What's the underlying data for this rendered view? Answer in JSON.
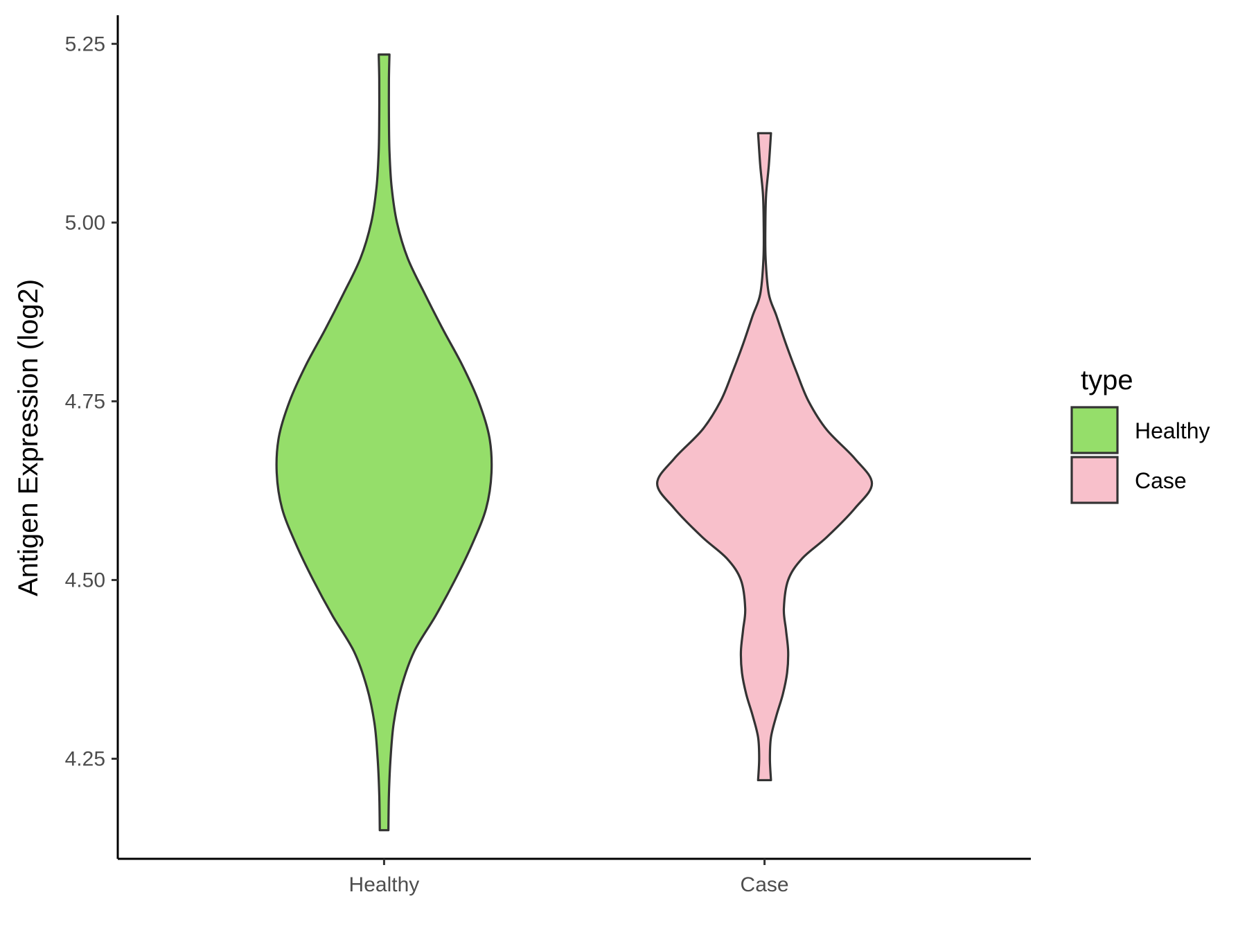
{
  "chart_data": {
    "type": "violin",
    "ylabel": "Antigen Expression (log2)",
    "xlabel": "",
    "ylim": [
      4.11,
      5.29
    ],
    "yticks": [
      4.25,
      4.5,
      4.75,
      5.0,
      5.25
    ],
    "ytick_labels": [
      "4.25",
      "4.50",
      "4.75",
      "5.00",
      "5.25"
    ],
    "categories": [
      "Healthy",
      "Case"
    ],
    "legend": {
      "title": "type",
      "position": "right",
      "entries": [
        {
          "label": "Healthy",
          "color": "#95de6a"
        },
        {
          "label": "Case",
          "color": "#f8c0cb"
        }
      ]
    },
    "series": [
      {
        "name": "Healthy",
        "color": "#95de6a",
        "min": 4.15,
        "max": 5.235,
        "profile": [
          [
            4.15,
            0.04
          ],
          [
            4.2,
            0.045
          ],
          [
            4.25,
            0.06
          ],
          [
            4.3,
            0.09
          ],
          [
            4.35,
            0.16
          ],
          [
            4.4,
            0.28
          ],
          [
            4.45,
            0.48
          ],
          [
            4.5,
            0.66
          ],
          [
            4.55,
            0.82
          ],
          [
            4.6,
            0.95
          ],
          [
            4.65,
            1.0
          ],
          [
            4.7,
            0.98
          ],
          [
            4.75,
            0.88
          ],
          [
            4.8,
            0.73
          ],
          [
            4.85,
            0.55
          ],
          [
            4.9,
            0.38
          ],
          [
            4.95,
            0.22
          ],
          [
            5.0,
            0.12
          ],
          [
            5.05,
            0.07
          ],
          [
            5.1,
            0.05
          ],
          [
            5.15,
            0.045
          ],
          [
            5.2,
            0.045
          ],
          [
            5.235,
            0.05
          ]
        ]
      },
      {
        "name": "Case",
        "color": "#f8c0cb",
        "min": 4.22,
        "max": 5.125,
        "profile": [
          [
            4.22,
            0.06
          ],
          [
            4.25,
            0.05
          ],
          [
            4.28,
            0.06
          ],
          [
            4.31,
            0.11
          ],
          [
            4.34,
            0.17
          ],
          [
            4.37,
            0.21
          ],
          [
            4.4,
            0.22
          ],
          [
            4.43,
            0.2
          ],
          [
            4.46,
            0.18
          ],
          [
            4.5,
            0.22
          ],
          [
            4.53,
            0.35
          ],
          [
            4.56,
            0.58
          ],
          [
            4.6,
            0.84
          ],
          [
            4.635,
            1.0
          ],
          [
            4.67,
            0.84
          ],
          [
            4.71,
            0.58
          ],
          [
            4.75,
            0.41
          ],
          [
            4.79,
            0.3
          ],
          [
            4.83,
            0.2
          ],
          [
            4.87,
            0.11
          ],
          [
            4.9,
            0.04
          ],
          [
            4.95,
            0.01
          ],
          [
            5.0,
            0.008
          ],
          [
            5.04,
            0.015
          ],
          [
            5.08,
            0.04
          ],
          [
            5.125,
            0.06
          ]
        ]
      }
    ]
  }
}
